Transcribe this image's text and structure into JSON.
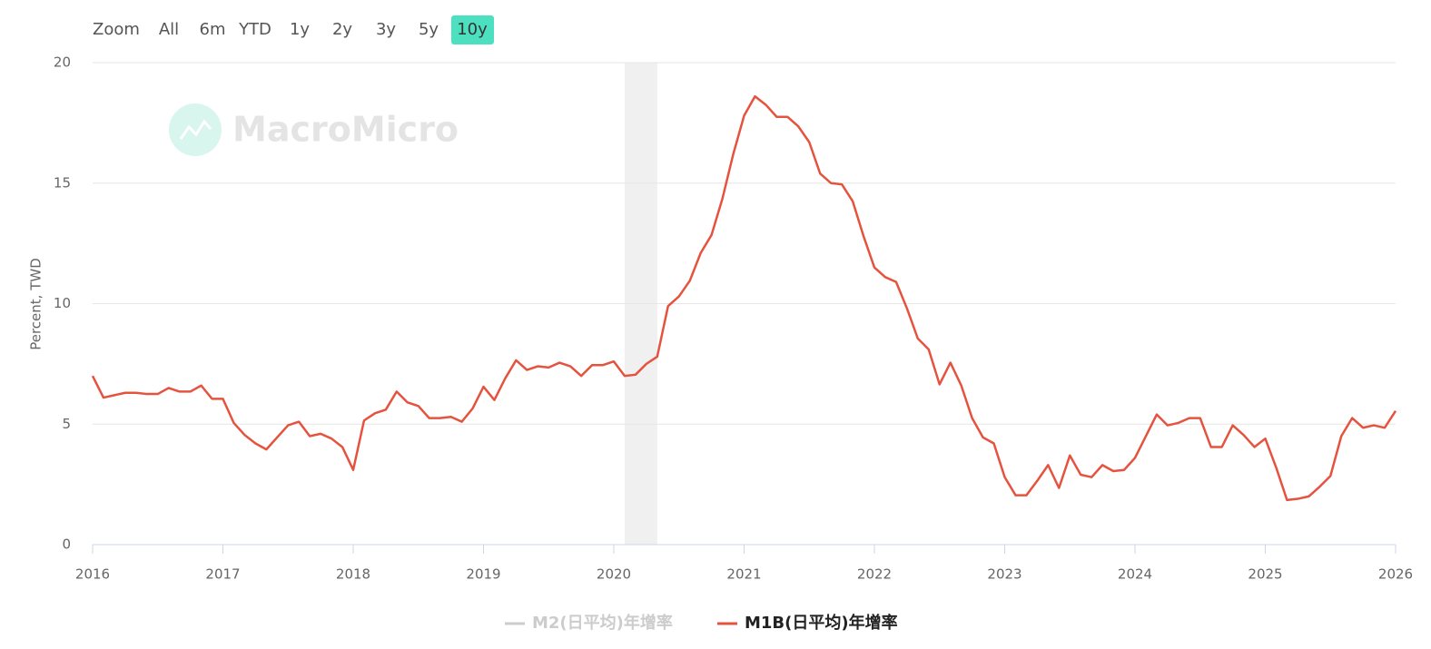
{
  "range_selector": {
    "label": "Zoom",
    "buttons": [
      "All",
      "6m",
      "YTD",
      "1y",
      "2y",
      "3y",
      "5y",
      "10y"
    ],
    "selected": 7
  },
  "watermark": "MacroMicro",
  "chart_data": {
    "type": "line",
    "y_label": "Percent, TWD",
    "x": [
      "2016-01",
      "2016-02",
      "2016-03",
      "2016-04",
      "2016-05",
      "2016-06",
      "2016-07",
      "2016-08",
      "2016-09",
      "2016-10",
      "2016-11",
      "2016-12",
      "2017-01",
      "2017-02",
      "2017-03",
      "2017-04",
      "2017-05",
      "2017-06",
      "2017-07",
      "2017-08",
      "2017-09",
      "2017-10",
      "2017-11",
      "2017-12",
      "2018-01",
      "2018-02",
      "2018-03",
      "2018-04",
      "2018-05",
      "2018-06",
      "2018-07",
      "2018-08",
      "2018-09",
      "2018-10",
      "2018-11",
      "2018-12",
      "2019-01",
      "2019-02",
      "2019-03",
      "2019-04",
      "2019-05",
      "2019-06",
      "2019-07",
      "2019-08",
      "2019-09",
      "2019-10",
      "2019-11",
      "2019-12",
      "2020-01",
      "2020-02",
      "2020-03",
      "2020-04",
      "2020-05",
      "2020-06",
      "2020-07",
      "2020-08",
      "2020-09",
      "2020-10",
      "2020-11",
      "2020-12",
      "2021-01",
      "2021-02",
      "2021-03",
      "2021-04",
      "2021-05",
      "2021-06",
      "2021-07",
      "2021-08",
      "2021-09",
      "2021-10",
      "2021-11",
      "2021-12",
      "2022-01",
      "2022-02",
      "2022-03",
      "2022-04",
      "2022-05",
      "2022-06",
      "2022-07",
      "2022-08",
      "2022-09",
      "2022-10",
      "2022-11",
      "2022-12",
      "2023-01",
      "2023-02",
      "2023-03",
      "2023-04",
      "2023-05",
      "2023-06",
      "2023-07",
      "2023-08",
      "2023-09",
      "2023-10",
      "2023-11",
      "2023-12",
      "2024-01",
      "2024-02",
      "2024-03",
      "2024-04",
      "2024-05",
      "2024-06",
      "2024-07",
      "2024-08",
      "2024-09",
      "2024-10",
      "2024-11",
      "2024-12",
      "2025-01",
      "2025-02",
      "2025-03",
      "2025-04",
      "2025-05",
      "2025-06",
      "2025-07",
      "2025-08",
      "2025-09",
      "2025-10",
      "2025-11",
      "2025-12",
      "2026-01"
    ],
    "series": [
      {
        "name": "M2(日平均)年增率",
        "color": "#cccccc",
        "visible": false
      },
      {
        "name": "M1B(日平均)年增率",
        "color": "#e5533f",
        "visible": true,
        "values": [
          7.0,
          6.1,
          6.2,
          6.3,
          6.3,
          6.25,
          6.25,
          6.5,
          6.35,
          6.35,
          6.6,
          6.05,
          6.05,
          5.05,
          4.55,
          4.2,
          3.95,
          4.45,
          4.95,
          5.1,
          4.5,
          4.6,
          4.4,
          4.05,
          3.1,
          5.15,
          5.45,
          5.6,
          6.35,
          5.9,
          5.75,
          5.25,
          5.25,
          5.3,
          5.1,
          5.65,
          6.55,
          6.0,
          6.9,
          7.65,
          7.25,
          7.4,
          7.35,
          7.55,
          7.4,
          7.0,
          7.45,
          7.45,
          7.6,
          7.0,
          7.05,
          7.5,
          7.8,
          9.9,
          10.3,
          10.95,
          12.1,
          12.85,
          14.35,
          16.2,
          17.8,
          18.6,
          18.25,
          17.75,
          17.75,
          17.35,
          16.7,
          15.4,
          15.0,
          14.95,
          14.25,
          12.8,
          11.5,
          11.1,
          10.9,
          9.8,
          8.55,
          8.1,
          6.65,
          7.55,
          6.6,
          5.25,
          4.45,
          4.2,
          2.8,
          2.05,
          2.05,
          2.65,
          3.3,
          2.35,
          3.7,
          2.9,
          2.8,
          3.3,
          3.05,
          3.1,
          3.6,
          4.5,
          5.4,
          4.95,
          5.05,
          5.25,
          5.25,
          4.05,
          4.05,
          4.95,
          4.55,
          4.05,
          4.4,
          3.2,
          1.85,
          1.9,
          2.0,
          2.4,
          2.85,
          4.5,
          5.25,
          4.85,
          4.95,
          4.85,
          5.55
        ]
      }
    ],
    "shaded_ranges": [
      [
        "2020-02",
        "2020-05"
      ]
    ],
    "xlim": [
      2016,
      2026
    ],
    "xticks": [
      2016,
      2017,
      2018,
      2019,
      2020,
      2021,
      2022,
      2023,
      2024,
      2025,
      2026
    ],
    "ylim": [
      0,
      20
    ],
    "yticks": [
      0,
      5,
      10,
      15,
      20
    ],
    "grid": true
  }
}
